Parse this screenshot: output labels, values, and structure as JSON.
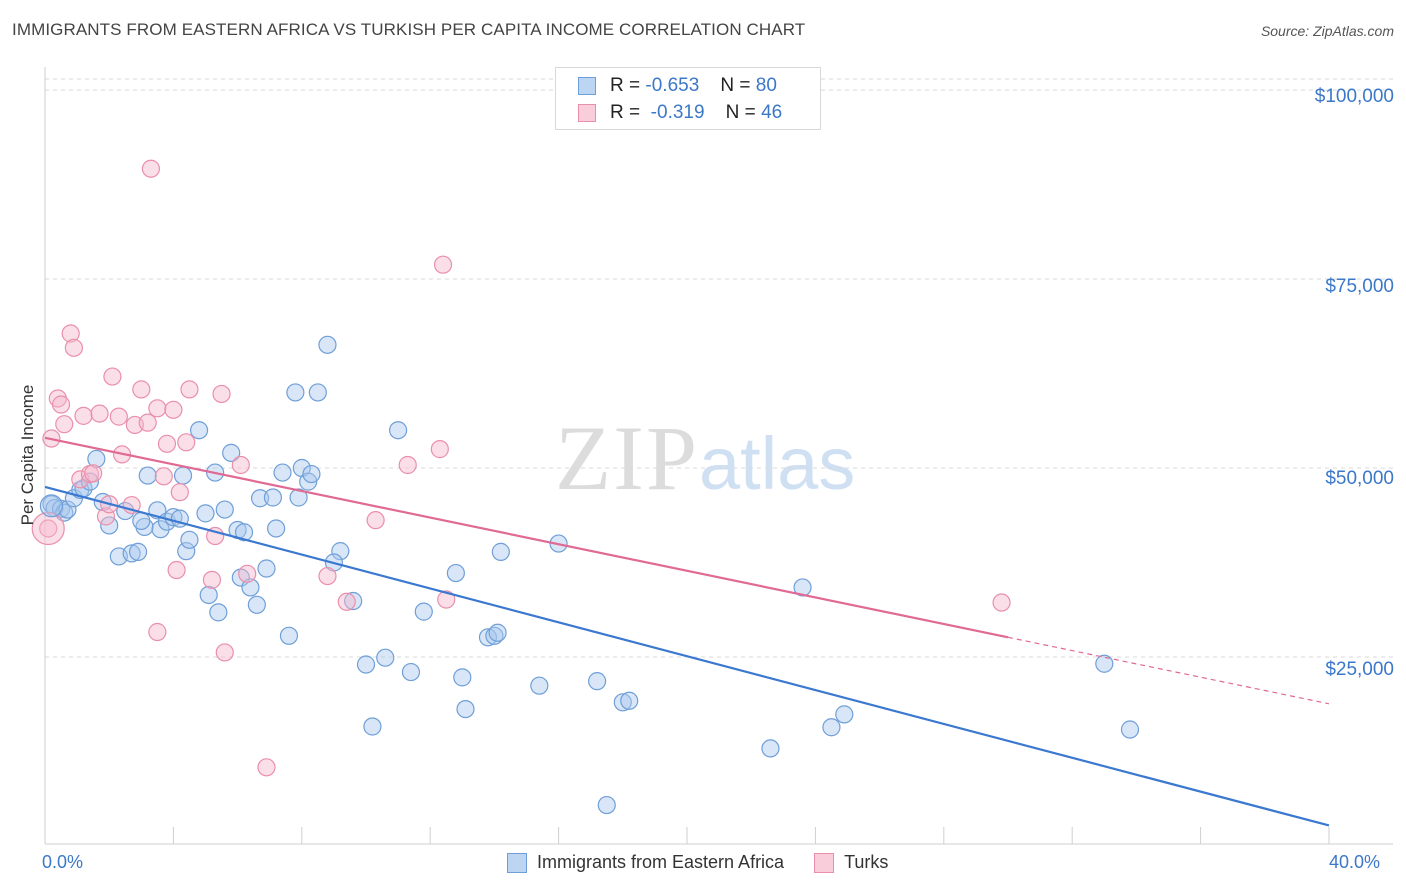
{
  "title": "IMMIGRANTS FROM EASTERN AFRICA VS TURKISH PER CAPITA INCOME CORRELATION CHART",
  "source": "Source: ZipAtlas.com",
  "watermark": {
    "zip": "ZIP",
    "atlas": "atlas"
  },
  "legend_top": {
    "rows": [
      {
        "r_label": "R =",
        "r_value": "-0.653",
        "n_label": "N =",
        "n_value": "80"
      },
      {
        "r_label": "R =",
        "r_value": "-0.319",
        "n_label": "N =",
        "n_value": "46"
      }
    ]
  },
  "colors": {
    "blue_fill": "#a9c8ee",
    "blue_stroke": "#6f9fd8",
    "blue_line": "#3b78d0",
    "pink_fill": "#f6b8cb",
    "pink_stroke": "#ea8fab",
    "pink_line": "#e06a93",
    "grid": "#d9d9d9",
    "axis_text": "#3b78c9"
  },
  "chart_data": {
    "type": "scatter",
    "title": "IMMIGRANTS FROM EASTERN AFRICA VS TURKISH PER CAPITA INCOME CORRELATION CHART",
    "xlabel": "",
    "ylabel": "Per Capita Income",
    "xlim": [
      0,
      40
    ],
    "ylim": [
      2500,
      102000
    ],
    "x_tick_labels": [
      "0.0%",
      "40.0%"
    ],
    "y_ticks": [
      {
        "value": 25000,
        "label": "$25,000"
      },
      {
        "value": 50000,
        "label": "$50,000"
      },
      {
        "value": 75000,
        "label": "$75,000"
      },
      {
        "value": 100000,
        "label": "$100,000"
      }
    ],
    "grid": true,
    "legend_position": "bottom",
    "series": [
      {
        "name": "Immigrants from Eastern Africa",
        "color": "blue",
        "r": -0.653,
        "n": 80,
        "trend": {
          "x0": 0.0,
          "y0": 47500,
          "x1": 40.0,
          "y1": 2700,
          "x_solid_end": 40.0
        },
        "points": [
          [
            0.2,
            45200
          ],
          [
            0.3,
            44700
          ],
          [
            0.5,
            44600
          ],
          [
            0.6,
            44100
          ],
          [
            0.7,
            44500
          ],
          [
            0.9,
            46000
          ],
          [
            1.1,
            47100
          ],
          [
            1.2,
            47300
          ],
          [
            1.4,
            48200
          ],
          [
            1.6,
            51200
          ],
          [
            2.0,
            42400
          ],
          [
            2.3,
            38300
          ],
          [
            2.5,
            44300
          ],
          [
            2.7,
            38700
          ],
          [
            2.9,
            38900
          ],
          [
            3.1,
            42200
          ],
          [
            3.2,
            49000
          ],
          [
            3.5,
            44400
          ],
          [
            3.6,
            41900
          ],
          [
            3.8,
            42900
          ],
          [
            4.0,
            43500
          ],
          [
            4.2,
            43300
          ],
          [
            4.3,
            49000
          ],
          [
            4.4,
            39000
          ],
          [
            4.5,
            40500
          ],
          [
            4.8,
            55000
          ],
          [
            5.0,
            44000
          ],
          [
            5.1,
            33200
          ],
          [
            5.3,
            49400
          ],
          [
            5.4,
            30900
          ],
          [
            5.6,
            44500
          ],
          [
            5.8,
            52000
          ],
          [
            6.0,
            41800
          ],
          [
            6.1,
            35500
          ],
          [
            6.4,
            34200
          ],
          [
            6.6,
            31900
          ],
          [
            6.7,
            46000
          ],
          [
            6.9,
            36700
          ],
          [
            7.1,
            46100
          ],
          [
            7.2,
            42000
          ],
          [
            7.4,
            49400
          ],
          [
            7.6,
            27800
          ],
          [
            7.8,
            60000
          ],
          [
            7.9,
            46100
          ],
          [
            8.0,
            50000
          ],
          [
            8.2,
            48200
          ],
          [
            8.3,
            49200
          ],
          [
            8.5,
            60000
          ],
          [
            8.8,
            66300
          ],
          [
            9.2,
            39000
          ],
          [
            9.6,
            32400
          ],
          [
            10.0,
            24000
          ],
          [
            10.2,
            15800
          ],
          [
            10.6,
            24900
          ],
          [
            11.0,
            55000
          ],
          [
            11.4,
            23000
          ],
          [
            12.8,
            36100
          ],
          [
            13.0,
            22300
          ],
          [
            13.1,
            18100
          ],
          [
            13.8,
            27600
          ],
          [
            14.0,
            27800
          ],
          [
            14.1,
            28200
          ],
          [
            14.2,
            38900
          ],
          [
            15.4,
            21200
          ],
          [
            16.0,
            40000
          ],
          [
            17.2,
            21800
          ],
          [
            17.5,
            5400
          ],
          [
            18.0,
            19000
          ],
          [
            18.2,
            19200
          ],
          [
            22.6,
            12900
          ],
          [
            23.6,
            34200
          ],
          [
            24.5,
            15700
          ],
          [
            24.9,
            17400
          ],
          [
            33.0,
            24100
          ],
          [
            33.8,
            15400
          ],
          [
            1.8,
            45500
          ],
          [
            3.0,
            43000
          ],
          [
            6.2,
            41500
          ],
          [
            9.0,
            37500
          ],
          [
            11.8,
            31000
          ]
        ]
      },
      {
        "name": "Turks",
        "color": "pink",
        "r": -0.319,
        "n": 46,
        "trend": {
          "x0": 0.0,
          "y0": 54000,
          "x1": 40.0,
          "y1": 18800,
          "x_solid_end": 30.0
        },
        "points": [
          [
            0.1,
            42000
          ],
          [
            0.2,
            53900
          ],
          [
            0.4,
            59200
          ],
          [
            0.5,
            58400
          ],
          [
            0.6,
            55800
          ],
          [
            0.8,
            67800
          ],
          [
            0.9,
            65900
          ],
          [
            1.1,
            48500
          ],
          [
            1.2,
            56900
          ],
          [
            1.4,
            49200
          ],
          [
            1.5,
            49300
          ],
          [
            1.7,
            57200
          ],
          [
            1.9,
            43600
          ],
          [
            2.0,
            45200
          ],
          [
            2.1,
            62100
          ],
          [
            2.3,
            56800
          ],
          [
            2.4,
            51800
          ],
          [
            2.7,
            45100
          ],
          [
            2.8,
            55700
          ],
          [
            3.0,
            60400
          ],
          [
            3.2,
            56000
          ],
          [
            3.3,
            89600
          ],
          [
            3.5,
            57900
          ],
          [
            3.5,
            28300
          ],
          [
            3.7,
            48900
          ],
          [
            3.8,
            53200
          ],
          [
            4.0,
            57700
          ],
          [
            4.1,
            36500
          ],
          [
            4.2,
            46800
          ],
          [
            4.4,
            53400
          ],
          [
            4.5,
            60400
          ],
          [
            5.2,
            35200
          ],
          [
            5.3,
            41000
          ],
          [
            5.5,
            59800
          ],
          [
            5.6,
            25600
          ],
          [
            6.1,
            50400
          ],
          [
            6.3,
            36000
          ],
          [
            6.9,
            10400
          ],
          [
            8.8,
            35700
          ],
          [
            9.4,
            32300
          ],
          [
            10.3,
            43100
          ],
          [
            11.3,
            50400
          ],
          [
            12.3,
            52500
          ],
          [
            12.5,
            32600
          ],
          [
            12.4,
            76900
          ],
          [
            29.8,
            32200
          ]
        ]
      }
    ]
  }
}
